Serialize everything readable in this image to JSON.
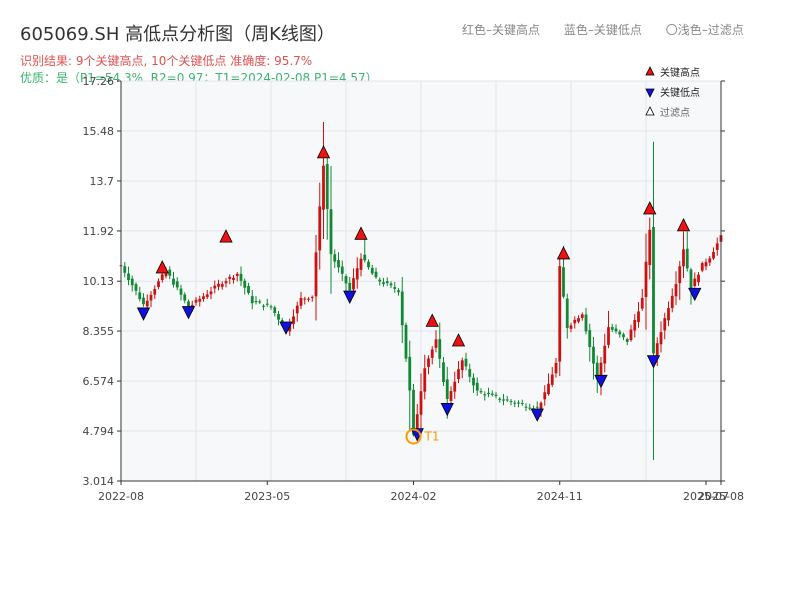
{
  "header": {
    "title": "605069.SH 高低点分析图（周K线图）",
    "result_line": "识别结果: 9个关键高点, 10个关键低点   准确度: 95.7%",
    "quality_line": "优质：是（P1=54.3%, R2=0.97；T1=2024-02-08 P1=4.57）",
    "top_legend": [
      "红色–关键高点",
      "蓝色–关键低点",
      "〇浅色–过滤点"
    ]
  },
  "legend": [
    {
      "label": "关键高点",
      "symbol": "up",
      "color": "#ee1111"
    },
    {
      "label": "关键低点",
      "symbol": "down",
      "color": "#1111dd"
    },
    {
      "label": "过滤点",
      "symbol": "up-hollow",
      "color": "#ffffff"
    }
  ],
  "colors": {
    "up": "#cc1111",
    "down": "#118833",
    "high_marker": "#ee1111",
    "low_marker": "#1111dd",
    "t1_marker": "#ff9900",
    "plot_bg": "#f7f8fa",
    "grid": "#e2e4e8"
  },
  "chart_data": {
    "type": "candlestick",
    "title": "605069.SH 高低点分析图（周K线图）",
    "x_ticks": [
      {
        "t": 0,
        "label": "2022-08"
      },
      {
        "t": 39,
        "label": "2023-05"
      },
      {
        "t": 78,
        "label": "2024-02"
      },
      {
        "t": 117,
        "label": "2024-11"
      },
      {
        "t": 156,
        "label": "2025-07"
      },
      {
        "t": 160,
        "label": "2025-08"
      }
    ],
    "y_ticks": [
      3.014,
      4.794,
      6.574,
      8.355,
      10.13,
      11.92,
      13.7,
      15.48,
      17.26
    ],
    "ylim": [
      3.014,
      17.26
    ],
    "xlim": [
      0,
      160
    ],
    "grid": true,
    "anchors": [
      [
        0,
        10.7
      ],
      [
        6,
        9.3
      ],
      [
        12,
        10.5
      ],
      [
        18,
        9.2
      ],
      [
        27,
        10.1
      ],
      [
        31,
        10.4
      ],
      [
        35,
        9.4
      ],
      [
        40,
        9.2
      ],
      [
        44,
        8.4
      ],
      [
        48,
        9.5
      ],
      [
        51,
        9.6
      ],
      [
        54,
        14.3
      ],
      [
        56,
        11.1
      ],
      [
        61,
        9.8
      ],
      [
        64,
        11.0
      ],
      [
        68,
        10.2
      ],
      [
        74,
        9.8
      ],
      [
        77,
        6.2
      ],
      [
        78,
        4.6
      ],
      [
        81,
        7.1
      ],
      [
        84,
        8.0
      ],
      [
        87,
        5.9
      ],
      [
        91,
        7.3
      ],
      [
        95,
        6.2
      ],
      [
        102,
        5.9
      ],
      [
        111,
        5.6
      ],
      [
        113,
        6.1
      ],
      [
        116,
        7.2
      ],
      [
        117,
        10.6
      ],
      [
        119,
        8.5
      ],
      [
        123,
        9.0
      ],
      [
        127,
        6.6
      ],
      [
        130,
        8.5
      ],
      [
        135,
        8.0
      ],
      [
        139,
        9.5
      ],
      [
        141,
        12.0
      ],
      [
        142,
        7.5
      ],
      [
        145,
        8.8
      ],
      [
        148,
        10.1
      ],
      [
        150,
        11.3
      ],
      [
        152,
        9.9
      ],
      [
        155,
        10.7
      ],
      [
        157,
        11.0
      ],
      [
        160,
        11.7
      ]
    ],
    "spikes": [
      {
        "t": 54,
        "high": 15.8
      },
      {
        "t": 55,
        "high": 14.6
      },
      {
        "t": 65,
        "high": 11.7
      },
      {
        "t": 77,
        "low": 4.8
      },
      {
        "t": 78,
        "low": 4.6
      },
      {
        "t": 117,
        "high": 11.0
      },
      {
        "t": 141,
        "high": 12.4
      },
      {
        "t": 150,
        "high": 11.9
      },
      {
        "t": 160,
        "high": 12.0
      }
    ],
    "highs": [
      {
        "t": 11,
        "v": 10.6
      },
      {
        "t": 28,
        "v": 11.7
      },
      {
        "t": 54,
        "v": 14.7
      },
      {
        "t": 64,
        "v": 11.8
      },
      {
        "t": 83,
        "v": 8.7
      },
      {
        "t": 90,
        "v": 8.0
      },
      {
        "t": 118,
        "v": 11.1
      },
      {
        "t": 141,
        "v": 12.7
      },
      {
        "t": 150,
        "v": 12.1
      }
    ],
    "lows": [
      {
        "t": 6,
        "v": 9.0
      },
      {
        "t": 18,
        "v": 9.05
      },
      {
        "t": 44,
        "v": 8.5
      },
      {
        "t": 61,
        "v": 9.6
      },
      {
        "t": 79,
        "v": 4.7
      },
      {
        "t": 87,
        "v": 5.6
      },
      {
        "t": 111,
        "v": 5.4
      },
      {
        "t": 128,
        "v": 6.6
      },
      {
        "t": 142,
        "v": 7.3
      },
      {
        "t": 153,
        "v": 9.7
      }
    ],
    "t1": {
      "t": 78,
      "v": 4.6,
      "label": "T1"
    }
  }
}
